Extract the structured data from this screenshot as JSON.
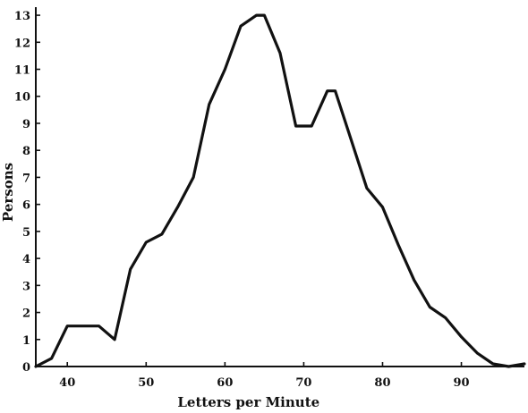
{
  "chart_data": {
    "type": "line",
    "title": "",
    "xlabel": "Letters per Minute",
    "ylabel": "Persons",
    "xlim": [
      36,
      98
    ],
    "ylim": [
      0,
      13.3
    ],
    "grid": false,
    "x_ticks": [
      40,
      50,
      60,
      70,
      80,
      90
    ],
    "y_tick_values": [
      0,
      1,
      2,
      3,
      4,
      5,
      6,
      7,
      8,
      9,
      10,
      11,
      12,
      13
    ],
    "y_tick_labels": [
      "0",
      "1",
      "2",
      "3",
      "4",
      "5",
      "6",
      "7",
      "8",
      "9",
      "10",
      "11",
      "12",
      "13"
    ],
    "series": [
      {
        "x": [
          36,
          38,
          40,
          42,
          44,
          46,
          48,
          50,
          52,
          54,
          56,
          58,
          60,
          62,
          64,
          65,
          67,
          69,
          71,
          73,
          74,
          76,
          78,
          80,
          82,
          84,
          86,
          88,
          90,
          92,
          94,
          96,
          98
        ],
        "y": [
          0,
          0.3,
          1.5,
          1.5,
          1.5,
          1.0,
          3.6,
          4.6,
          4.9,
          5.9,
          7.0,
          9.7,
          11.0,
          12.6,
          13.0,
          13.0,
          11.6,
          8.9,
          8.9,
          10.2,
          10.2,
          8.4,
          6.6,
          5.9,
          4.5,
          3.2,
          2.2,
          1.8,
          1.1,
          0.5,
          0.1,
          0,
          0.1
        ]
      }
    ]
  }
}
